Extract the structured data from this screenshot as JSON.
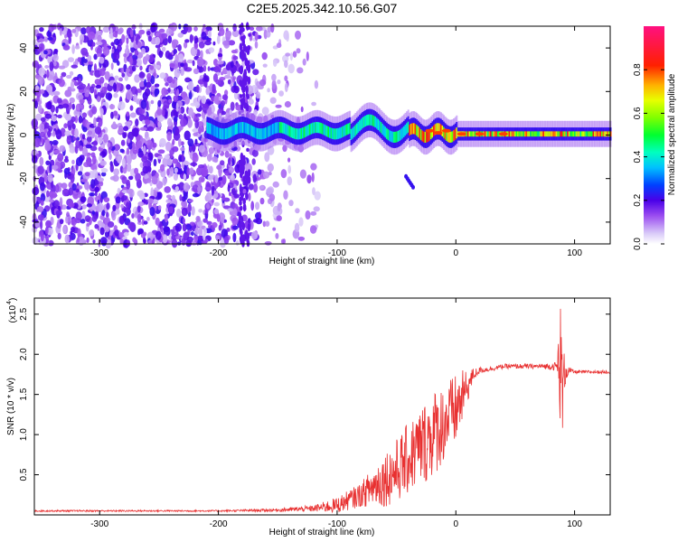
{
  "title": "C2E5.2025.342.10.56.G07",
  "chart_data": [
    {
      "type": "heatmap",
      "xlabel": "Height of straight line (km)",
      "ylabel": "Frequency (Hz)",
      "xlim": [
        -355,
        130
      ],
      "ylim": [
        -50,
        50
      ],
      "xticks": [
        -300,
        -200,
        -100,
        0,
        100
      ],
      "yticks": [
        -40,
        -20,
        0,
        20,
        40
      ],
      "xtick_labels": [
        "-300",
        "-200",
        "-100",
        "0",
        "100"
      ],
      "ytick_labels": [
        "-40",
        "-20",
        "0",
        "20",
        "40"
      ],
      "colorbar": {
        "label": "Normalized spectral amplitude",
        "range": [
          0,
          1
        ],
        "ticks": [
          0.0,
          0.2,
          0.4,
          0.6,
          0.8
        ],
        "tick_labels": [
          "0.0",
          "0.2",
          "0.4",
          "0.6",
          "0.8"
        ]
      }
    },
    {
      "type": "line",
      "xlabel": "Height of straight line (km)",
      "ylabel": "SNR (10 * v/v)",
      "y_scale_label": "(x10",
      "y_scale_exp": "4",
      "xlim": [
        -355,
        130
      ],
      "ylim": [
        0,
        2.7
      ],
      "xticks": [
        -300,
        -200,
        -100,
        0,
        100
      ],
      "xtick_labels": [
        "-300",
        "-200",
        "-100",
        "0",
        "100"
      ],
      "yticks": [
        0.5,
        1.0,
        1.5,
        2.0,
        2.5
      ],
      "ytick_labels": [
        "0.5",
        "1.0",
        "1.5",
        "2.0",
        "2.5"
      ],
      "color": "#e83030",
      "series": [
        {
          "x": [
            -355,
            -300,
            -250,
            -200,
            -150,
            -120,
            -100,
            -80,
            -70,
            -60,
            -50,
            -40,
            -30,
            -20,
            -10,
            0,
            5,
            10,
            15,
            20,
            30,
            40,
            50,
            60,
            70,
            80,
            85,
            88,
            90,
            92,
            95,
            100,
            110,
            120,
            130
          ],
          "y": [
            0.05,
            0.05,
            0.05,
            0.05,
            0.06,
            0.08,
            0.12,
            0.25,
            0.35,
            0.45,
            0.55,
            0.7,
            0.85,
            1.0,
            1.15,
            1.3,
            1.45,
            1.6,
            1.75,
            1.8,
            1.82,
            1.85,
            1.85,
            1.85,
            1.85,
            1.85,
            1.85,
            1.9,
            1.5,
            1.8,
            1.8,
            1.78,
            1.78,
            1.78,
            1.78
          ],
          "envelope": [
            0.01,
            0.01,
            0.01,
            0.01,
            0.02,
            0.04,
            0.1,
            0.15,
            0.25,
            0.35,
            0.4,
            0.45,
            0.5,
            0.55,
            0.5,
            0.45,
            0.35,
            0.2,
            0.08,
            0.04,
            0.03,
            0.03,
            0.03,
            0.03,
            0.03,
            0.04,
            0.06,
            0.8,
            0.6,
            0.2,
            0.05,
            0.02,
            0.02,
            0.02,
            0.02
          ]
        }
      ]
    }
  ]
}
